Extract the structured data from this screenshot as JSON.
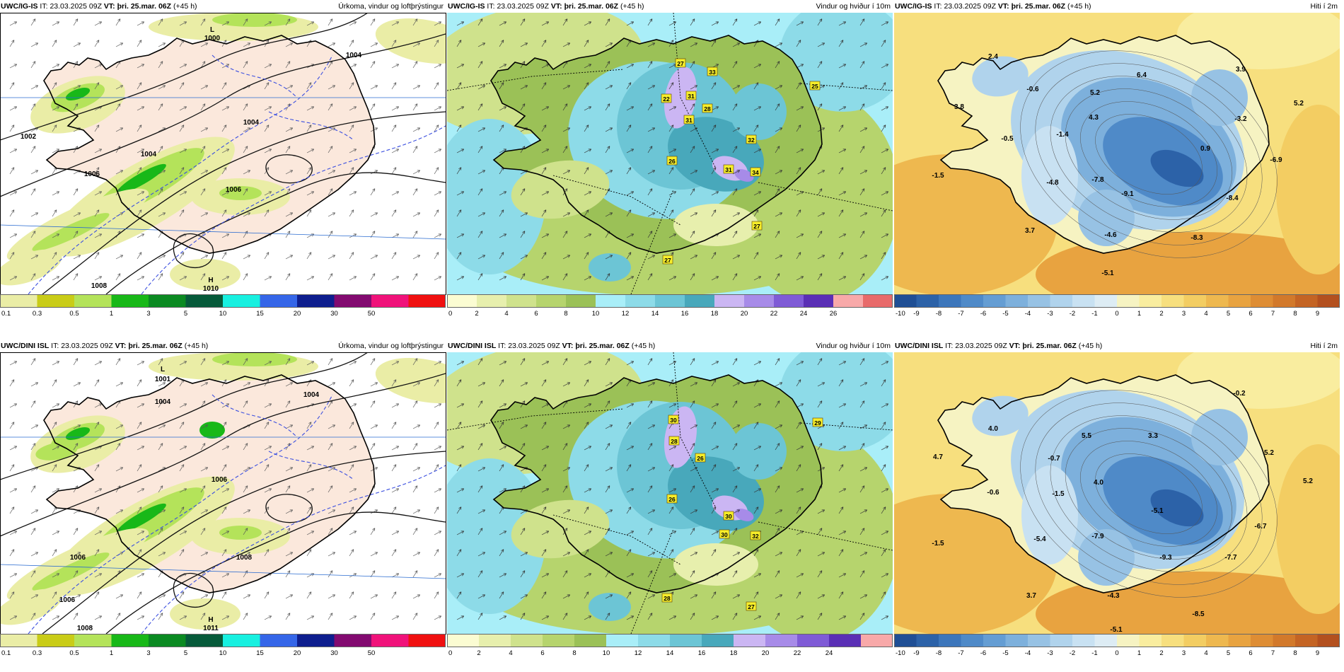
{
  "panels": [
    {
      "model": "UWC/IG-IS",
      "it_label": "IT:",
      "it": "23.03.2025 09Z",
      "vt_label": "VT:",
      "vt": "þri. 25.mar. 06Z",
      "lead": "(+45 h)",
      "title": "Úrkoma, vindur og loftþrýstingur",
      "labels": [
        {
          "t": "L"
        },
        {
          "t": "1000"
        },
        {
          "t": "H"
        },
        {
          "t": "1010"
        },
        {
          "t": "1002"
        },
        {
          "t": "1004"
        },
        {
          "t": "1006"
        },
        {
          "t": "1004"
        },
        {
          "t": "1006"
        },
        {
          "t": "1008"
        },
        {
          "t": "1004"
        }
      ]
    },
    {
      "model": "UWC/IG-IS",
      "it_label": "IT:",
      "it": "23.03.2025 09Z",
      "vt_label": "VT:",
      "vt": "þri. 25.mar. 06Z",
      "lead": "(+45 h)",
      "title": "Vindur og hviður í 10m",
      "labels": [
        {
          "t": "27"
        },
        {
          "t": "33"
        },
        {
          "t": "22"
        },
        {
          "t": "31"
        },
        {
          "t": "28"
        },
        {
          "t": "31"
        },
        {
          "t": "32"
        },
        {
          "t": "26"
        },
        {
          "t": "31"
        },
        {
          "t": "34"
        },
        {
          "t": "25"
        },
        {
          "t": "27"
        },
        {
          "t": "27"
        }
      ]
    },
    {
      "model": "UWC/IG-IS",
      "it_label": "IT:",
      "it": "23.03.2025 09Z",
      "vt_label": "VT:",
      "vt": "þri. 25.mar. 06Z",
      "lead": "(+45 h)",
      "title": "Hiti í 2m",
      "labels": [
        {
          "t": "2.4"
        },
        {
          "t": "-0.6"
        },
        {
          "t": "5.2"
        },
        {
          "t": "6.4"
        },
        {
          "t": "3.9"
        },
        {
          "t": "3.8"
        },
        {
          "t": "4.3"
        },
        {
          "t": "-1.4"
        },
        {
          "t": "-3.2"
        },
        {
          "t": "5.2"
        },
        {
          "t": "-0.5"
        },
        {
          "t": "0.9"
        },
        {
          "t": "-6.9"
        },
        {
          "t": "-1.5"
        },
        {
          "t": "-4.8"
        },
        {
          "t": "-7.8"
        },
        {
          "t": "-9.1"
        },
        {
          "t": "-8.4"
        },
        {
          "t": "3.7"
        },
        {
          "t": "-4.6"
        },
        {
          "t": "-8.3"
        },
        {
          "t": "-5.1"
        }
      ]
    },
    {
      "model": "UWC/DINI ISL",
      "it_label": "IT:",
      "it": "23.03.2025 09Z",
      "vt_label": "VT:",
      "vt": "þri. 25.mar. 06Z",
      "lead": "(+45 h)",
      "title": "Úrkoma, vindur og loftþrýstingur",
      "labels": [
        {
          "t": "L"
        },
        {
          "t": "1001"
        },
        {
          "t": "H"
        },
        {
          "t": "1011"
        },
        {
          "t": "1004"
        },
        {
          "t": "1006"
        },
        {
          "t": "1006"
        },
        {
          "t": "1008"
        },
        {
          "t": "1004"
        },
        {
          "t": "1006"
        },
        {
          "t": "1008"
        }
      ]
    },
    {
      "model": "UWC/DINI ISL",
      "it_label": "IT:",
      "it": "23.03.2025 09Z",
      "vt_label": "VT:",
      "vt": "þri. 25.mar. 06Z",
      "lead": "(+45 h)",
      "title": "Vindur og hviður í 10m",
      "labels": [
        {
          "t": "30"
        },
        {
          "t": "28"
        },
        {
          "t": "26"
        },
        {
          "t": "26"
        },
        {
          "t": "30"
        },
        {
          "t": "30"
        },
        {
          "t": "32"
        },
        {
          "t": "28"
        },
        {
          "t": "27"
        },
        {
          "t": "29"
        }
      ]
    },
    {
      "model": "UWC/DINI ISL",
      "it_label": "IT:",
      "it": "23.03.2025 09Z",
      "vt_label": "VT:",
      "vt": "þri. 25.mar. 06Z",
      "lead": "(+45 h)",
      "title": "Hiti í 2m",
      "labels": [
        {
          "t": "-0.2"
        },
        {
          "t": "4.0"
        },
        {
          "t": "5.5"
        },
        {
          "t": "3.3"
        },
        {
          "t": "4.7"
        },
        {
          "t": "-0.7"
        },
        {
          "t": "5.2"
        },
        {
          "t": "4.0"
        },
        {
          "t": "5.2"
        },
        {
          "t": "-0.6"
        },
        {
          "t": "-1.5"
        },
        {
          "t": "-5.1"
        },
        {
          "t": "-6.7"
        },
        {
          "t": "-1.5"
        },
        {
          "t": "-5.4"
        },
        {
          "t": "-7.9"
        },
        {
          "t": "-9.3"
        },
        {
          "t": "-7.7"
        },
        {
          "t": "3.7"
        },
        {
          "t": "-4.3"
        },
        {
          "t": "-8.5"
        },
        {
          "t": "-5.1"
        }
      ]
    }
  ],
  "legends": {
    "precip": {
      "ticks": [
        "0.1",
        "0.3",
        "0.5",
        "1",
        "3",
        "5",
        "10",
        "15",
        "20",
        "30",
        "50"
      ],
      "colors": [
        "#eaeda6",
        "#c9cc17",
        "#b4e35a",
        "#18b818",
        "#0b8a22",
        "#065a3a",
        "#18f0e0",
        "#3566e8",
        "#0e1e8e",
        "#820a70",
        "#f0127a",
        "#f01010"
      ]
    },
    "wind1": {
      "ticks": [
        "0",
        "2",
        "4",
        "6",
        "8",
        "10",
        "12",
        "14",
        "16",
        "18",
        "20",
        "22",
        "24",
        "26"
      ],
      "colors": [
        "#fbfcd2",
        "#e7efad",
        "#cfe28c",
        "#b6d46d",
        "#9bc157",
        "#a9eef8",
        "#8ddbe8",
        "#6cc5d5",
        "#48a8bb",
        "#cbb6f3",
        "#a78be8",
        "#7f5bd6",
        "#5a2fb5",
        "#f8a9a9",
        "#e86a6a"
      ]
    },
    "wind2": {
      "ticks": [
        "0",
        "2",
        "4",
        "6",
        "8",
        "10",
        "12",
        "14",
        "16",
        "18",
        "20",
        "22",
        "24"
      ],
      "colors": [
        "#fbfcd2",
        "#e7efad",
        "#cfe28c",
        "#b6d46d",
        "#9bc157",
        "#a9eef8",
        "#8ddbe8",
        "#6cc5d5",
        "#48a8bb",
        "#cbb6f3",
        "#a78be8",
        "#7f5bd6",
        "#5a2fb5",
        "#f8a9a9"
      ]
    },
    "temp": {
      "ticks": [
        "-10",
        "-9",
        "-8",
        "-7",
        "-6",
        "-5",
        "-4",
        "-3",
        "-2",
        "-1",
        "0",
        "1",
        "2",
        "3",
        "4",
        "5",
        "6",
        "7",
        "8",
        "9"
      ],
      "colors": [
        "#1f4f95",
        "#2c62a8",
        "#3c76bb",
        "#4f8ac8",
        "#649dd3",
        "#7db0dc",
        "#97c2e4",
        "#b0d3ec",
        "#c8e1f2",
        "#ddecf4",
        "#f6f3c2",
        "#f9ed9f",
        "#f7df7e",
        "#f3cd62",
        "#eeb84f",
        "#e8a340",
        "#de8d34",
        "#d2792b",
        "#c46424",
        "#b3501f"
      ]
    }
  }
}
